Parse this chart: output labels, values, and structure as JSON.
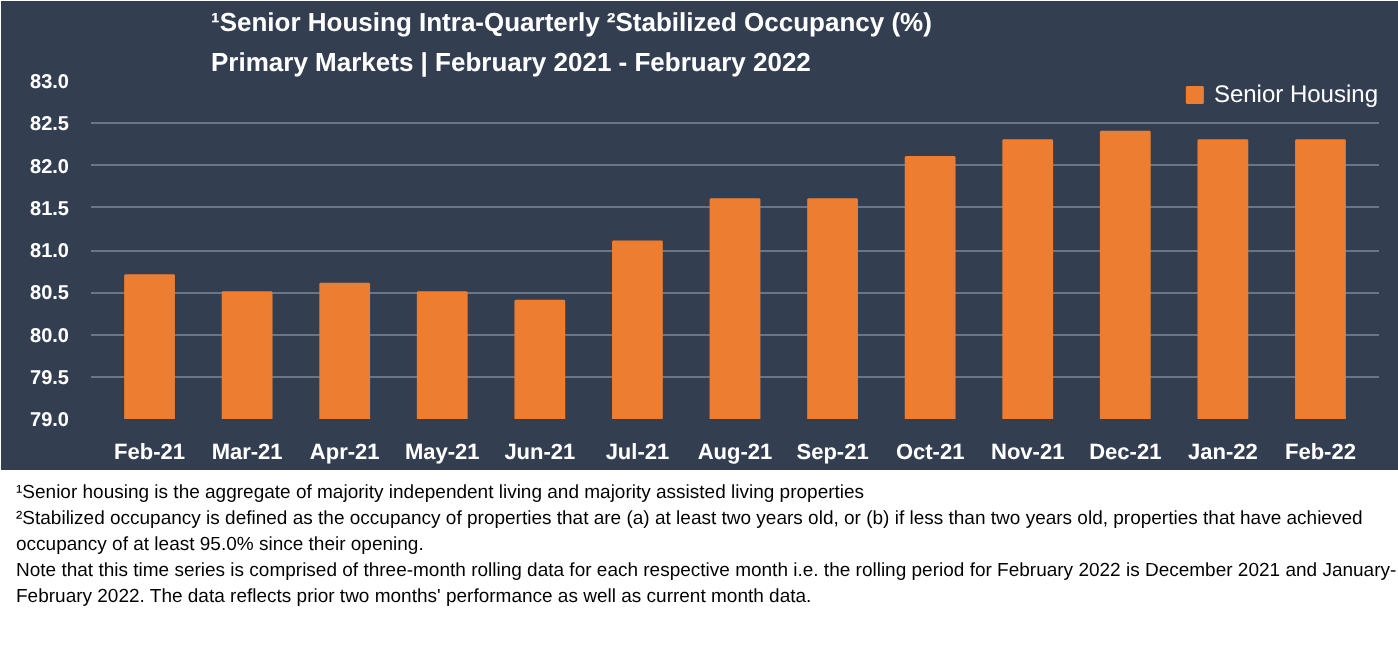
{
  "chart_data": {
    "type": "bar",
    "title": "¹Senior Housing Intra-Quarterly ²Stabilized Occupancy (%)",
    "subtitle": "Primary Markets | February 2021 - February 2022",
    "categories": [
      "Feb-21",
      "Mar-21",
      "Apr-21",
      "May-21",
      "Jun-21",
      "Jul-21",
      "Aug-21",
      "Sep-21",
      "Oct-21",
      "Nov-21",
      "Dec-21",
      "Jan-22",
      "Feb-22"
    ],
    "series": [
      {
        "name": "Senior Housing",
        "color": "#ed7d31",
        "values": [
          80.7,
          80.5,
          80.6,
          80.5,
          80.4,
          81.1,
          81.6,
          81.6,
          82.1,
          82.3,
          82.4,
          82.3,
          82.3
        ]
      }
    ],
    "ylim": [
      79.0,
      83.0
    ],
    "yticks": [
      {
        "value": 79,
        "label": "79.0"
      },
      79.5,
      {
        "value": 80,
        "label": "80.0"
      },
      80.5,
      {
        "value": 81,
        "label": "81.0"
      },
      81.5,
      {
        "value": 82,
        "label": "82.0"
      },
      82.5,
      {
        "value": 83,
        "label": "83.0"
      }
    ],
    "grid": "y",
    "legend": "top right",
    "annotations": [
      "¹Senior housing is the aggregate of majority independent living and majority assisted living properties",
      "²Stabilized occupancy is defined as the occupancy of properties that are (a) at least two years old, or (b) if less than two years old, properties that have achieved occupancy of at least 95.0% since their opening.",
      "Note that this time series is comprised of three-month rolling data for each respective month i.e. the rolling period for February 2022 is December 2021 and January-February 2022. The data reflects prior two months' performance as well as current month data."
    ]
  }
}
